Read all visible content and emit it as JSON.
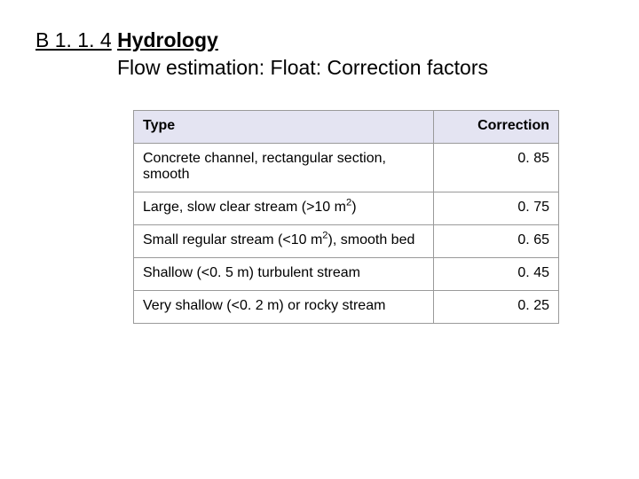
{
  "heading": {
    "section_number": "B 1. 1. 4",
    "title_bold": "Hydrology",
    "subtitle": "Flow estimation: Float: Correction factors"
  },
  "table": {
    "header_bg": "#e4e4f2",
    "border_color": "#9a9a9a",
    "columns": [
      "Type",
      "Correction"
    ],
    "rows": [
      {
        "type_html": "Concrete channel, rectangular section, smooth",
        "value": "0. 85"
      },
      {
        "type_html": "Large, slow clear stream (>10 m<span class=\"sup\">2</span>)",
        "value": "0. 75"
      },
      {
        "type_html": "Small regular stream (<10 m<span class=\"sup\">2</span>), smooth bed",
        "value": "0. 65"
      },
      {
        "type_html": "Shallow (<0. 5 m) turbulent stream",
        "value": "0. 45"
      },
      {
        "type_html": "Very shallow (<0. 2 m) or rocky stream",
        "value": "0. 25"
      }
    ]
  }
}
